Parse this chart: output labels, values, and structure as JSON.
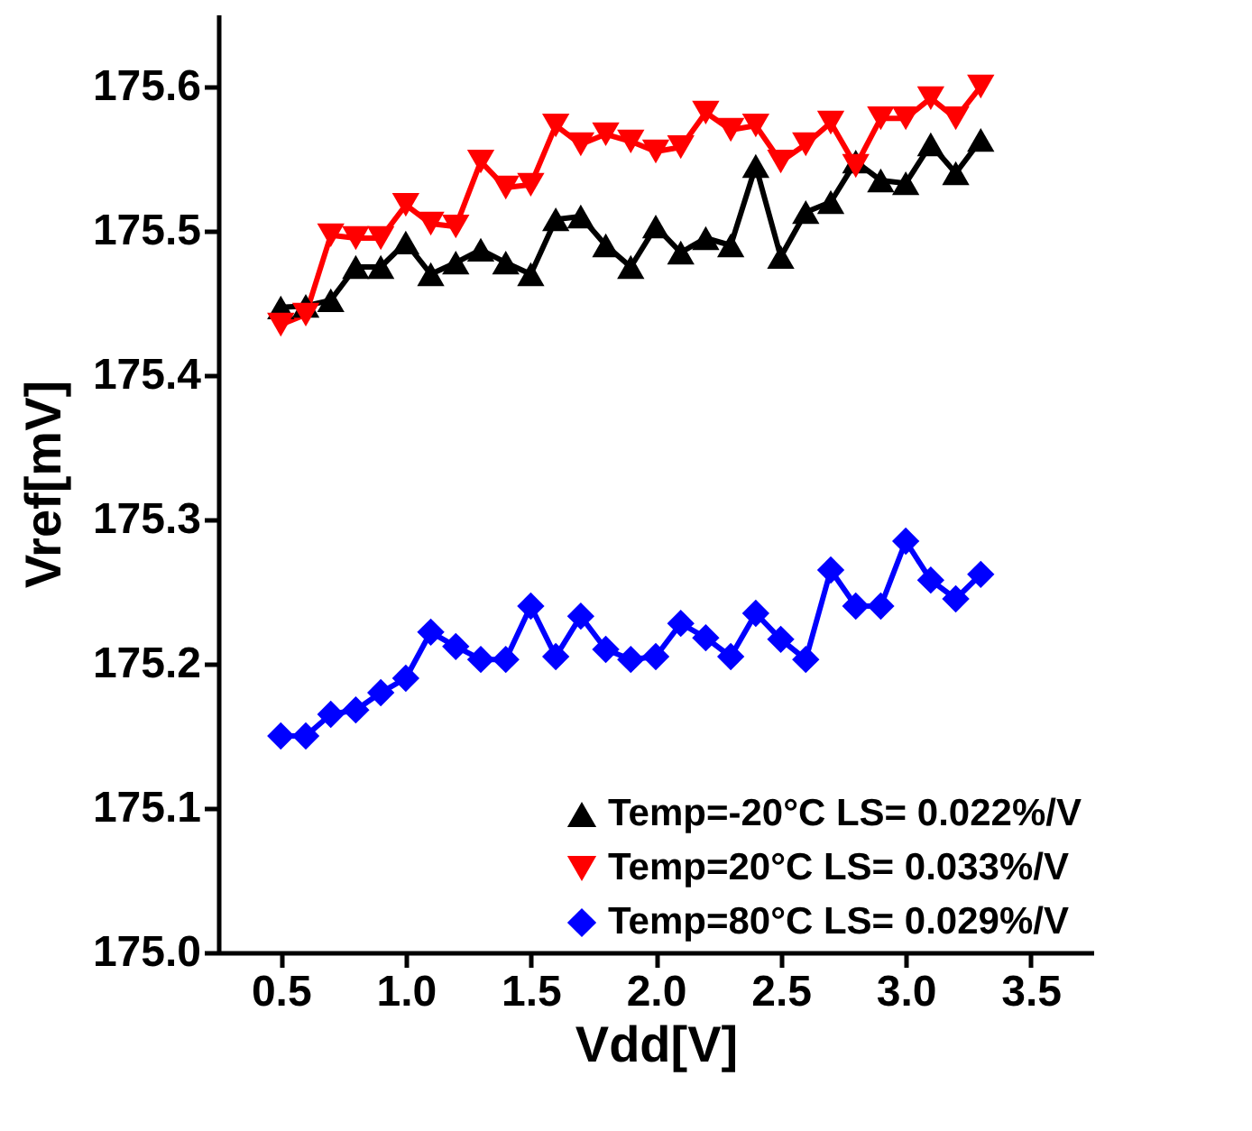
{
  "chart_data": {
    "type": "line",
    "xlabel": "Vdd[V]",
    "ylabel": "Vref[mV]",
    "x": [
      0.5,
      0.6,
      0.7,
      0.8,
      0.9,
      1.0,
      1.1,
      1.2,
      1.3,
      1.4,
      1.5,
      1.6,
      1.7,
      1.8,
      1.9,
      2.0,
      2.1,
      2.2,
      2.3,
      2.4,
      2.5,
      2.6,
      2.7,
      2.8,
      2.9,
      3.0,
      3.1,
      3.2,
      3.3
    ],
    "series": [
      {
        "name": "Temp=-20°C LS= 0.022%/V",
        "color": "#000000",
        "marker": "triangle",
        "values": [
          175.447,
          175.448,
          175.452,
          175.475,
          175.475,
          175.492,
          175.47,
          175.478,
          175.487,
          175.478,
          175.47,
          175.508,
          175.51,
          175.49,
          175.475,
          175.503,
          175.485,
          175.495,
          175.49,
          175.545,
          175.482,
          175.513,
          175.52,
          175.548,
          175.535,
          175.533,
          175.56,
          175.54,
          175.563
        ]
      },
      {
        "name": "Temp=20°C LS= 0.033%/V",
        "color": "#ff0000",
        "marker": "triangle-down",
        "values": [
          175.435,
          175.442,
          175.497,
          175.495,
          175.495,
          175.518,
          175.505,
          175.503,
          175.548,
          175.53,
          175.532,
          175.573,
          175.56,
          175.567,
          175.562,
          175.555,
          175.558,
          175.582,
          175.57,
          175.573,
          175.548,
          175.56,
          175.575,
          175.545,
          175.578,
          175.578,
          175.592,
          175.578,
          175.6
        ]
      },
      {
        "name": "Temp=80°C LS= 0.029%/V",
        "color": "#0000ff",
        "marker": "diamond",
        "values": [
          175.15,
          175.15,
          175.165,
          175.168,
          175.18,
          175.19,
          175.222,
          175.212,
          175.203,
          175.203,
          175.24,
          175.205,
          175.233,
          175.21,
          175.203,
          175.205,
          175.228,
          175.218,
          175.205,
          175.235,
          175.217,
          175.203,
          175.265,
          175.24,
          175.24,
          175.285,
          175.258,
          175.245,
          175.262
        ]
      }
    ],
    "xlim": [
      0.25,
      3.75
    ],
    "xticks": [
      0.5,
      {
        "value": 1,
        "label": "1.0"
      },
      1.5,
      {
        "value": 2,
        "label": "2.0"
      },
      2.5,
      {
        "value": 3,
        "label": "3.0"
      },
      3.5
    ],
    "ylim": [
      175.0,
      175.65
    ],
    "yticks": [
      {
        "value": 175,
        "label": "175.0"
      },
      175.1,
      175.2,
      175.3,
      175.4,
      175.5,
      175.6
    ],
    "grid": false,
    "legend": "bottom right",
    "line_style": "solid"
  }
}
